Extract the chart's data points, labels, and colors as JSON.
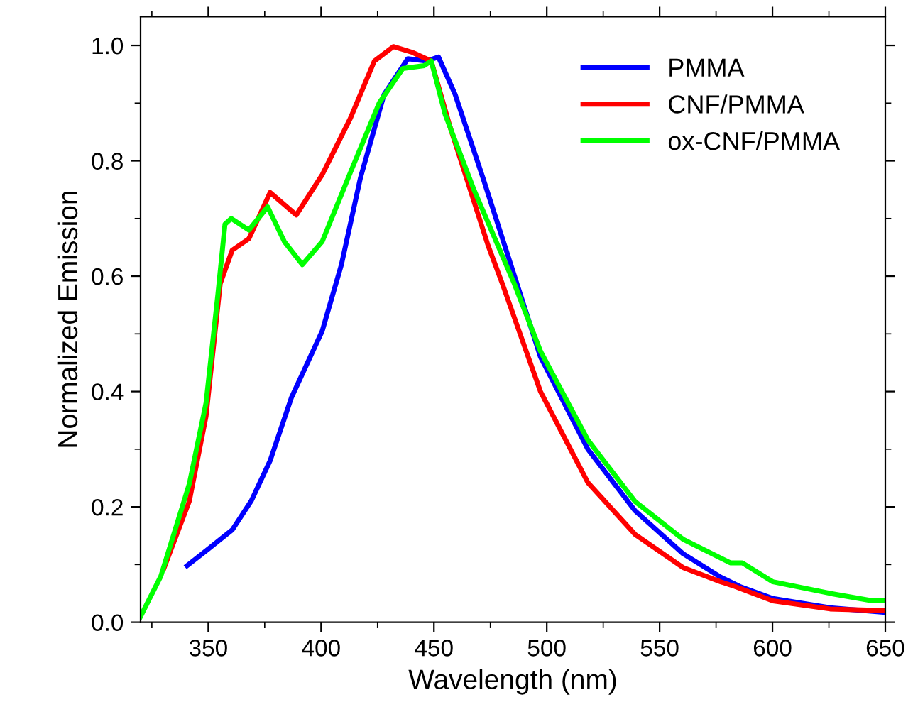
{
  "chart_data": {
    "type": "line",
    "xlabel": "Wavelength (nm)",
    "ylabel": "Normalized Emission",
    "xlim": [
      320,
      650
    ],
    "ylim": [
      0,
      1.05
    ],
    "xticks": [
      350,
      400,
      450,
      500,
      550,
      600,
      650
    ],
    "yticks": [
      {
        "value": 0,
        "label": "0.0"
      },
      {
        "value": 0.2,
        "label": "0.2"
      },
      {
        "value": 0.4,
        "label": "0.4"
      },
      {
        "value": 0.6,
        "label": "0.6"
      },
      {
        "value": 0.8,
        "label": "0.8"
      },
      {
        "value": 1,
        "label": "1.0"
      }
    ],
    "grid": false,
    "legend": "top right",
    "marker": "none",
    "line_style": "solid",
    "series": [
      {
        "name": "PMMA",
        "color": "#0000ff",
        "x": [
          340.6,
          350,
          360.6,
          369,
          377.4,
          386.9,
          400.5,
          409,
          417.4,
          427.9,
          438.4,
          446.8,
          452,
          459.4,
          472,
          497.2,
          518.2,
          539.2,
          560.3,
          577.1,
          585.5,
          600.2,
          625.5,
          650
        ],
        "values": [
          0.098,
          0.127,
          0.16,
          0.21,
          0.28,
          0.39,
          0.505,
          0.62,
          0.77,
          0.915,
          0.977,
          0.973,
          0.98,
          0.915,
          0.767,
          0.46,
          0.3,
          0.193,
          0.119,
          0.078,
          0.062,
          0.041,
          0.025,
          0.017
        ]
      },
      {
        "name": "CNF/PMMA",
        "color": "#ff0000",
        "x": [
          330.4,
          341.6,
          349,
          355.3,
          360.6,
          368,
          377.4,
          389,
          400.5,
          413,
          423.6,
          432,
          440.4,
          448.8,
          457.2,
          474,
          480.3,
          497.2,
          518.2,
          539.2,
          560.3,
          577.1,
          583.4,
          600.2,
          625.5,
          650
        ],
        "values": [
          0.094,
          0.21,
          0.357,
          0.587,
          0.645,
          0.665,
          0.745,
          0.706,
          0.776,
          0.874,
          0.973,
          0.998,
          0.988,
          0.973,
          0.858,
          0.653,
          0.587,
          0.4,
          0.242,
          0.152,
          0.095,
          0.07,
          0.062,
          0.037,
          0.023,
          0.02
        ]
      },
      {
        "name": "ox-CNF/PMMA",
        "color": "#00ff00",
        "x": [
          320,
          329,
          341.6,
          349,
          354.3,
          357.4,
          360.2,
          368,
          376.3,
          383.7,
          391.7,
          400.5,
          413,
          425.7,
          436.2,
          445.7,
          448.8,
          455,
          467.7,
          485.6,
          497.2,
          518.2,
          539.2,
          560.3,
          581.3,
          586.6,
          600.2,
          625.5,
          644.4,
          650
        ],
        "values": [
          0.01,
          0.08,
          0.24,
          0.38,
          0.57,
          0.69,
          0.7,
          0.68,
          0.72,
          0.66,
          0.62,
          0.66,
          0.78,
          0.9,
          0.96,
          0.965,
          0.973,
          0.88,
          0.75,
          0.587,
          0.47,
          0.316,
          0.209,
          0.144,
          0.103,
          0.103,
          0.07,
          0.05,
          0.037,
          0.038
        ]
      }
    ]
  }
}
